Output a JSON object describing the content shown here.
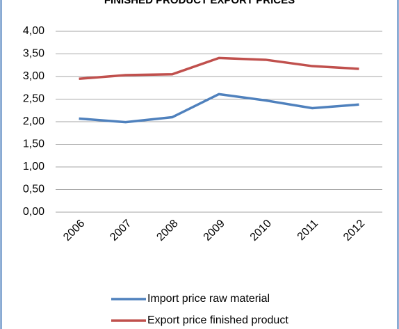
{
  "chart_data": {
    "type": "line",
    "title": "FINISHED PRODUCT EXPORT PRICES",
    "categories": [
      "2006",
      "2007",
      "2008",
      "2009",
      "2010",
      "2011",
      "2012"
    ],
    "series": [
      {
        "name": "Import price raw material",
        "color": "#4f81bd",
        "values": [
          2.07,
          1.99,
          2.1,
          2.61,
          2.47,
          2.3,
          2.38
        ]
      },
      {
        "name": "Export price finished product",
        "color": "#c0504d",
        "values": [
          2.95,
          3.03,
          3.05,
          3.41,
          3.37,
          3.23,
          3.17
        ]
      }
    ],
    "ylim": [
      0,
      4
    ],
    "yticks": [
      {
        "value": 0,
        "label": "0,00"
      },
      {
        "value": 0.5,
        "label": "0,50"
      },
      {
        "value": 1,
        "label": "1,00"
      },
      {
        "value": 1.5,
        "label": "1,50"
      },
      {
        "value": 2,
        "label": "2,00"
      },
      {
        "value": 2.5,
        "label": "2,50"
      },
      {
        "value": 3,
        "label": "3,00"
      },
      {
        "value": 3.5,
        "label": "3,50"
      },
      {
        "value": 4,
        "label": "4,00"
      }
    ],
    "grid": true,
    "legend": "bottom"
  }
}
